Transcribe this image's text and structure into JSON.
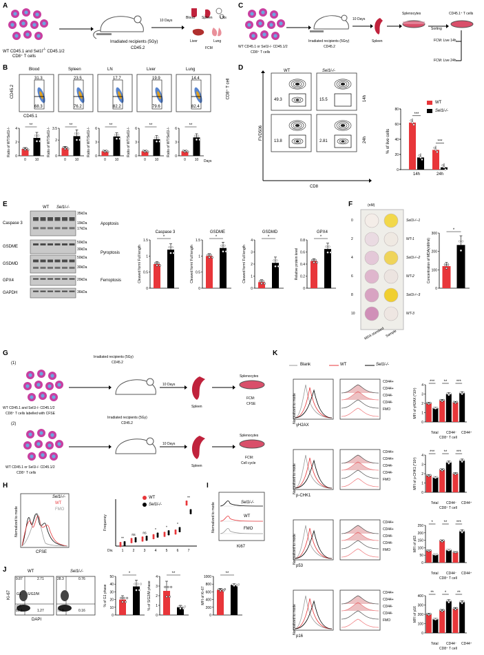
{
  "colors": {
    "wt": "#e8363a",
    "ko": "#000000",
    "blank": "#888888",
    "cell": "#c83fa0",
    "cell_core": "#6aa7e0",
    "mouse": "#ffffff",
    "spleen": "#c0223c",
    "dish": "#d94f6a"
  },
  "panels": {
    "A": "A",
    "B": "B",
    "C": "C",
    "D": "D",
    "E": "E",
    "F": "F",
    "G": "G",
    "H": "H",
    "I": "I",
    "J": "J",
    "K": "K"
  },
  "A": {
    "caption1": "WT CD45.1 and Sel1l",
    "caption1b": "-/-",
    "caption1c": " CD45.1/2",
    "caption2": "CD8⁺ T cells",
    "recipients": "Irradiated  recipients (5Gy)",
    "recipients2": "CD45.2",
    "days": "10 Days",
    "organs": [
      "Blood",
      "Spleen",
      "LNs",
      "Liver",
      "Lung"
    ],
    "fcm": "FCM"
  },
  "B": {
    "organs": [
      "Blood",
      "Spleen",
      "LN",
      "Liver",
      "Lung"
    ],
    "upper": [
      "31.3",
      "23.5",
      "17.7",
      "19.9",
      "14.4"
    ],
    "lower": [
      "68.3",
      "76.2",
      "82.2",
      "79.6",
      "82.4"
    ],
    "yaxis": "CD45.2",
    "xaxis": "CD45.1",
    "side": "CD8⁺ T cell",
    "ylabels": [
      "Ratio of WT/Sel1l-/-",
      "Ratio of WT/Sel1l-/-",
      "Ratio of WT/Sel1l-/-",
      "Ratio of WT/Sel1l-/-",
      "Ratio of WT/Sel1l-/-"
    ],
    "sig": [
      "**",
      "**",
      "**",
      "**",
      "**"
    ],
    "xt": [
      "0",
      "10"
    ],
    "days": "Days"
  },
  "C": {
    "caption1": "WT CD45.1 or Sel1l-/- CD45.1/2",
    "caption2": "CD8⁺ T cells",
    "recipients": "Irradiated  recipients (5Gry)",
    "recipients2": "CD45.2",
    "days": "10 Days",
    "spleen": "Spleen",
    "splen": "Splenocytes",
    "cd451": "CD45.1⁺ T cells",
    "sorting": "Sorting",
    "f14": "FCM: Live 14h",
    "f24": "FCM: Live 24h"
  },
  "D": {
    "wt": "WT",
    "ko": "Sel1l-/-",
    "yaxis": "FVD506",
    "xaxis": "CD8",
    "vals": [
      "49.3",
      "15.5",
      "13.8",
      "2.81"
    ],
    "t14": "14h",
    "t24": "24h",
    "ylabel": "% of live cells",
    "legend": [
      "WT",
      "Sel1l-/-"
    ],
    "xt": [
      "14h",
      "24h"
    ],
    "sig": [
      "***",
      "***"
    ],
    "yt": [
      "0",
      "20",
      "40",
      "60",
      "80"
    ]
  },
  "E": {
    "wt": "WT",
    "ko": "Sel1l-/-",
    "rows": [
      "Caspase 3",
      "GSDME",
      "GSDMD",
      "GPX4",
      "GAPDH"
    ],
    "kda": [
      "35kDa",
      "19kDa",
      "17kDa",
      "50kDa",
      "30kDa",
      "50kDa",
      "30kDa",
      "20kDa",
      "36kDa"
    ],
    "groups": [
      "Apoptosis",
      "Pyroptosis",
      "Ferroptosis"
    ],
    "charts": [
      "Caspase 3",
      "GSDME",
      "GSDMD",
      "GPX4"
    ],
    "ylabels": [
      "Cleaved form/ Full length",
      "Cleaved form/ Full length",
      "Cleaved form/ Full length",
      "Relative protein level"
    ],
    "sig": [
      "*",
      "*",
      "*",
      "*"
    ]
  },
  "F": {
    "unit": "(nM)",
    "std": [
      "0",
      "2",
      "4",
      "6",
      "8",
      "10"
    ],
    "samples": [
      "Sel1l-/--1",
      "WT-1",
      "Sel1l-/--2",
      "WT-2",
      "Sel1l-/--3",
      "WT-3"
    ],
    "xl1": "MDA standard",
    "xl2": "Sample",
    "ylabel": "Concentration of MDA(nM/ml)",
    "sig": "*",
    "yt": [
      "0",
      "100",
      "200",
      "300"
    ]
  },
  "G": {
    "n1": "(1)",
    "n2": "(2)",
    "rec": "Irradiated  recipients (5Gy)",
    "rec2": "CD45.2",
    "days": "10 Days",
    "spleen": "Spleen",
    "splen": "Splenocytes",
    "c1a": "WT CD45.1 and Sel1l-/- CD45.1/2",
    "c1b": "CD8⁺ T cells labelled with CFSE",
    "c2a": "WT CD45.1 or Sel1l-/- CD45.1/2",
    "c2b": "CD8⁺ T cells",
    "f1a": "FCM:",
    "f1b": "CFSE",
    "f2a": "FCM:",
    "f2b": "Cell cycle"
  },
  "H": {
    "legend": [
      "Sel1l-/-",
      "WT",
      "FMO"
    ],
    "ylabel": "Normalized to mode",
    "xlabel": "CFSE",
    "fy": "Frequency",
    "div": "Div.",
    "xt": [
      "1",
      "2",
      "3",
      "4",
      "5",
      "6",
      "7"
    ],
    "sig": [
      "**",
      "ns",
      "ns",
      "*",
      "*",
      "*",
      "**"
    ],
    "legend2": [
      "WT",
      "Sel1l-/-"
    ]
  },
  "I": {
    "legend": [
      "Sel1l-/-",
      "WT",
      "FMO"
    ],
    "ylabel": "Normalized to mode",
    "xlabel": "Ki67"
  },
  "J": {
    "wt": "WT",
    "ko": "Sel1l-/-",
    "wtq": [
      "9.87",
      "2.71",
      "86.1",
      "1.27"
    ],
    "koq": [
      "28.3",
      "0.76",
      "70.8",
      "0.16"
    ],
    "g1": "G1",
    "sg2m": "S/G2/M",
    "g0": "G0",
    "yaxis": "Ki-67",
    "xaxis": "DAPI",
    "y1": "% of G1 phase",
    "y2": "% of S/G2/M phase",
    "y3": "MFI of Ki-67",
    "sig": [
      "*",
      "**",
      "**"
    ]
  },
  "K": {
    "legend": [
      "Blank",
      "WT",
      "Sel1l-/-"
    ],
    "ylabel": "Normalized to mode",
    "markers": [
      "γH2AX",
      "p-CHK1",
      "p53",
      "p16"
    ],
    "layers": [
      "CD44+",
      "CD44+",
      "CD44-",
      "CD44-",
      "FMO"
    ],
    "ylabels": [
      "MFI of γH2AX (*10³)",
      "MFI of p-CHK1 (*10³)",
      "MFI of p53",
      "MFI of p16"
    ],
    "xt": [
      "Total",
      "CD44⁻",
      "CD44⁺"
    ],
    "xtitle": "CD8⁺ T cell",
    "sig": [
      [
        "***",
        "**",
        "***"
      ],
      [
        "***",
        "**",
        "***"
      ],
      [
        "*",
        "**",
        "***"
      ],
      [
        "**",
        "*",
        "**"
      ]
    ]
  }
}
